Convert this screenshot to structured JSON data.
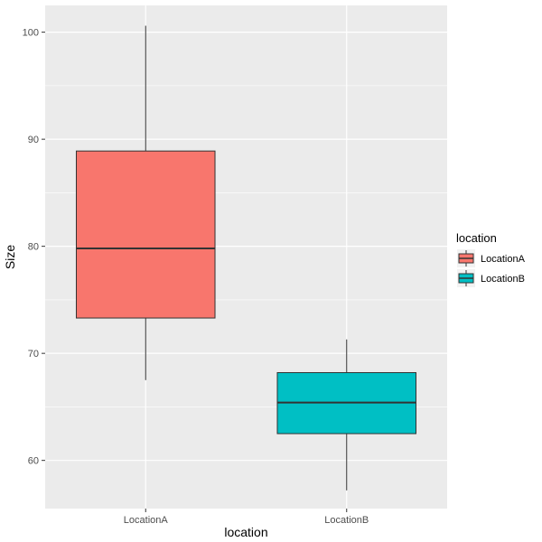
{
  "chart_data": {
    "type": "boxplot",
    "xlabel": "location",
    "ylabel": "Size",
    "ylim": [
      55.5,
      102.5
    ],
    "yticks": [
      60,
      70,
      80,
      90,
      100
    ],
    "categories": [
      "LocationA",
      "LocationB"
    ],
    "boxes": [
      {
        "category": "LocationA",
        "min": 67.5,
        "q1": 73.3,
        "median": 79.8,
        "q3": 88.9,
        "max": 100.6,
        "color": "#F8766D"
      },
      {
        "category": "LocationB",
        "min": 57.2,
        "q1": 62.5,
        "median": 65.4,
        "q3": 68.2,
        "max": 71.3,
        "color": "#00BFC4"
      }
    ],
    "legend": {
      "title": "location",
      "position": "right",
      "items": [
        {
          "label": "LocationA",
          "color": "#F8766D"
        },
        {
          "label": "LocationB",
          "color": "#00BFC4"
        }
      ]
    },
    "grid": true,
    "panel_background": "#EBEBEB",
    "grid_color": "#FFFFFF"
  }
}
